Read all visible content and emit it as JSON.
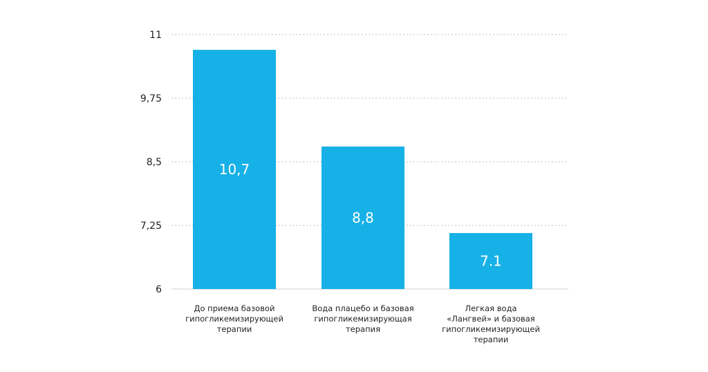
{
  "chart_data": {
    "type": "bar",
    "title": "",
    "xlabel": "",
    "ylabel": "",
    "categories": [
      [
        "До приема базовой",
        "гипогликемизирующей",
        "терапии"
      ],
      [
        "Вода плацебо и базовая",
        "гипогликемизирующая",
        "терапия"
      ],
      [
        "Легкая вода",
        "«Лангвей» и базовая",
        "гипогликемизирующей",
        "терапии"
      ]
    ],
    "values": [
      10.7,
      8.8,
      7.1
    ],
    "value_labels": [
      "10,7",
      "8,8",
      "7.1"
    ],
    "ylim": [
      6,
      11
    ],
    "y_ticks": [
      6,
      7.25,
      8.5,
      9.75,
      11
    ],
    "y_tick_labels": [
      "6",
      "7,25",
      "8,5",
      "9,75",
      "11"
    ],
    "grid": true,
    "grid_style": "dotted",
    "colors": {
      "bar": "#16b1e6",
      "grid": "#bdbdbd",
      "axis": "#cfcfcf"
    }
  }
}
